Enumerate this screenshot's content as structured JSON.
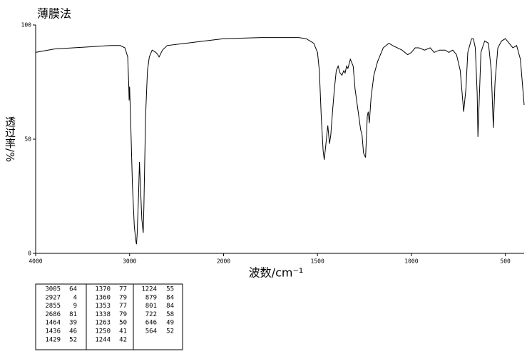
{
  "chart_data": {
    "type": "line",
    "title": "薄膜法",
    "xlabel": "波数/cm⁻¹",
    "ylabel": "透过率/%",
    "color": "#000000",
    "xlim": [
      4000,
      400
    ],
    "xticks": [
      4000,
      3000,
      2000,
      1500,
      1000,
      500
    ],
    "ylim": [
      0,
      100
    ],
    "yticks": [
      0,
      50,
      100
    ],
    "x": [
      4000,
      3800,
      3600,
      3400,
      3200,
      3100,
      3050,
      3020,
      3010,
      3005,
      3000,
      2990,
      2970,
      2950,
      2935,
      2927,
      2920,
      2905,
      2895,
      2885,
      2870,
      2855,
      2848,
      2830,
      2810,
      2790,
      2760,
      2720,
      2700,
      2686,
      2650,
      2600,
      2400,
      2200,
      2000,
      1800,
      1600,
      1560,
      1520,
      1500,
      1490,
      1480,
      1470,
      1464,
      1455,
      1445,
      1436,
      1429,
      1420,
      1410,
      1400,
      1390,
      1380,
      1370,
      1360,
      1353,
      1345,
      1338,
      1325,
      1310,
      1300,
      1290,
      1280,
      1270,
      1263,
      1255,
      1250,
      1244,
      1235,
      1230,
      1224,
      1215,
      1200,
      1180,
      1150,
      1120,
      1100,
      1050,
      1020,
      1000,
      980,
      960,
      930,
      900,
      879,
      850,
      820,
      801,
      780,
      760,
      740,
      722,
      710,
      700,
      680,
      670,
      660,
      650,
      646,
      640,
      630,
      610,
      590,
      575,
      564,
      555,
      540,
      520,
      500,
      480,
      460,
      440,
      420,
      400
    ],
    "values": [
      88,
      89.5,
      90,
      90.5,
      91,
      91,
      90,
      86,
      75,
      67,
      73,
      60,
      30,
      12,
      6,
      4,
      8,
      25,
      40,
      30,
      15,
      9,
      20,
      60,
      80,
      86,
      89,
      88,
      87,
      86,
      89,
      91,
      92,
      93,
      94,
      94.5,
      94.5,
      94,
      92,
      88,
      80,
      60,
      45,
      41,
      48,
      56,
      48,
      52,
      62,
      72,
      80,
      82,
      79,
      78,
      80,
      79,
      82,
      81,
      85,
      82,
      72,
      66,
      60,
      54,
      52,
      44,
      43,
      42,
      60,
      62,
      57,
      68,
      78,
      84,
      90,
      92,
      91,
      89,
      87,
      88,
      90,
      90,
      89,
      90,
      88,
      89,
      89,
      88,
      89,
      87,
      80,
      62,
      72,
      88,
      94,
      94,
      90,
      70,
      51,
      65,
      88,
      93,
      92,
      80,
      55,
      75,
      90,
      93,
      94,
      92,
      90,
      91,
      85,
      65
    ]
  },
  "peak_table": [
    [
      [
        3005,
        64
      ],
      [
        2927,
        4
      ],
      [
        2855,
        9
      ],
      [
        2686,
        81
      ],
      [
        1464,
        39
      ],
      [
        1436,
        46
      ],
      [
        1429,
        52
      ]
    ],
    [
      [
        1370,
        77
      ],
      [
        1360,
        79
      ],
      [
        1353,
        77
      ],
      [
        1338,
        79
      ],
      [
        1263,
        50
      ],
      [
        1250,
        41
      ],
      [
        1244,
        42
      ]
    ],
    [
      [
        1224,
        55
      ],
      [
        879,
        84
      ],
      [
        801,
        84
      ],
      [
        722,
        58
      ],
      [
        646,
        49
      ],
      [
        564,
        52
      ]
    ]
  ]
}
